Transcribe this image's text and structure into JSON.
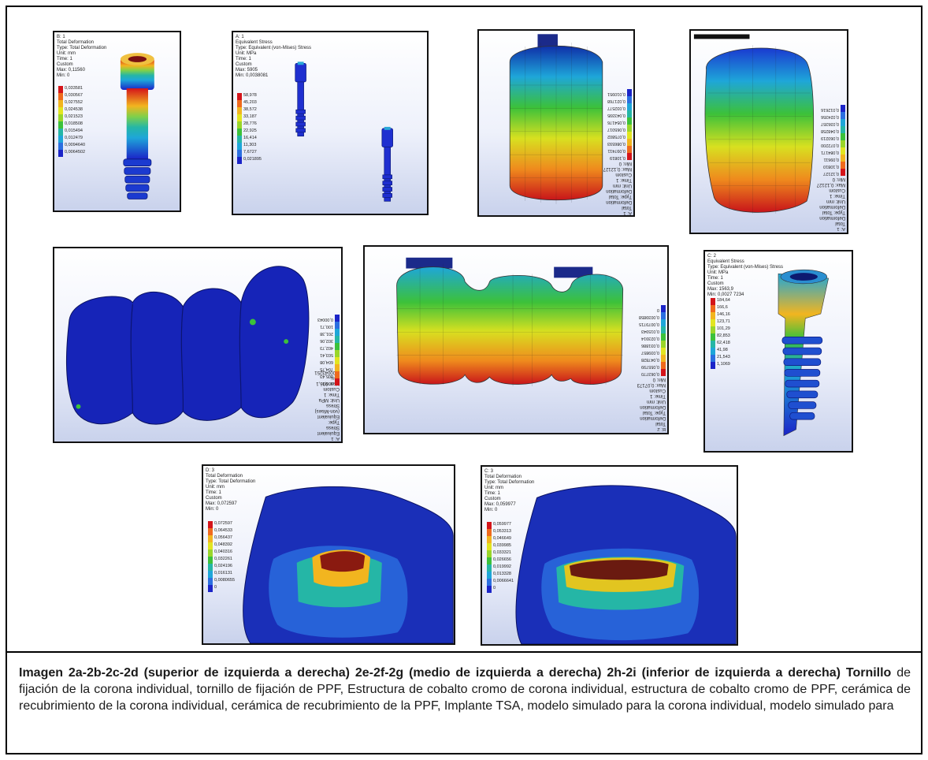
{
  "panels": [
    {
      "info": "B: 1\nTotal Deformation\nType: Total Deformation\nUnit: mm\nTime: 1\nCustom\nMax: 0,11560\nMin: 0",
      "legend": [
        "0,033581",
        "0,030567",
        "0,027552",
        "0,024538",
        "0,021523",
        "0,018508",
        "0,015494",
        "0,012479",
        "0,0094640",
        "0,0064502"
      ]
    },
    {
      "info": "A: 1\nEquivalent Stress\nType: Equivalent (von-Mises) Stress\nUnit: MPa\nTime: 1\nCustom\nMax: 5905\nMin: 0,0038081",
      "legend": [
        "58,978",
        "45,203",
        "38,572",
        "33,187",
        "28,776",
        "22,925",
        "16,414",
        "11,303",
        "7,6727",
        "0,021895"
      ]
    },
    {
      "info": "A: 1\nTotal Deformation\nType: Total Deformation\nUnit: mm\nTime: 1\nCustom\nMax: 0,12127\nMin: 0",
      "legend": [
        "0,10819",
        "0,097411",
        "0,086593",
        "0,075802",
        "0,065017",
        "0,054176",
        "0,043395",
        "0,032577",
        "0,021768",
        "0,010951"
      ]
    },
    {
      "info": "A: 1\nTotal Deformation\nType: Total Deformation\nUnit: mm\nTime: 1\nCustom\nMax: 0,12127\nMin: 0",
      "legend": [
        "0,12127",
        "0,10810",
        "0,09611",
        "0,084171",
        "0,072200",
        "0,060219",
        "0,048258",
        "0,036357",
        "0,024356",
        "0,012616"
      ]
    },
    {
      "info": "A: 1\nEquivalent Stress\nType: Equivalent (von-Mises) Stress\nUnit: MPa\nTime: 1\nCustom\nMax: 906,1\nMin: 0,00043251",
      "legend": [
        "906,1",
        "805,43",
        "704,75",
        "604,08",
        "503,41",
        "402,73",
        "302,06",
        "201,38",
        "100,71",
        "0,00043"
      ]
    },
    {
      "info": "B: 2\nTotal Deformation\nType: Total Deformation\nUnit: mm\nTime: 1\nCustom\nMax: 0,07173\nMin: 0",
      "legend": [
        "0,063770",
        "0,055799",
        "0,047828",
        "0,039857",
        "0,031886",
        "0,023914",
        "0,015943",
        "0,0079715",
        "0,0039858",
        "0"
      ]
    },
    {
      "info": "C: 2\nEquivalent Stress\nType: Equivalent (von-Mises) Stress\nUnit: MPa\nTime: 1\nCustom\nMax: 1563,9\nMin: 0,0027 7234",
      "legend": [
        "184,64",
        "166,6",
        "146,16",
        "123,71",
        "101,29",
        "82,853",
        "62,418",
        "41,98",
        "21,543",
        "1,1069"
      ]
    },
    {
      "info": "D: 3\nTotal Deformation\nType: Total Deformation\nUnit: mm\nTime: 1\nCustom\nMax: 0,072597\nMin: 0",
      "legend": [
        "0,072597",
        "0,064533",
        "0,056437",
        "0,048392",
        "0,040316",
        "0,032261",
        "0,024196",
        "0,016131",
        "0,0080655",
        "0"
      ]
    },
    {
      "info": "C: 3\nTotal Deformation\nType: Total Deformation\nUnit: mm\nTime: 1\nCustom\nMax: 0,059977\nMin: 0",
      "legend": [
        "0,059977",
        "0,053313",
        "0,046649",
        "0,039985",
        "0,033321",
        "0,026656",
        "0,019992",
        "0,013328",
        "0,0066641",
        "0"
      ]
    }
  ],
  "caption": {
    "bold_start": "Imagen 2a-2b-2c-2d (superior de izquierda a derecha) 2e-2f-2g (medio de izquierda a derecha) 2h-2i (inferior de izquierda a derecha) Tornillo",
    "rest": " de fijación de la corona individual, tornillo de fijación de PPF, Estructura de cobalto cromo de corona individual, estructura de cobalto cromo de PPF, cerámica de recubrimiento de la corona individual, cerámica de recubrimiento de la PPF, Implante TSA, modelo simulado para la corona individual, modelo simulado para"
  },
  "colors": {
    "legend": [
      "#d4141a",
      "#ef6a1d",
      "#f2b51f",
      "#e2e521",
      "#9ad62a",
      "#3cc13a",
      "#25b6a6",
      "#1ea6d9",
      "#2b6fe0",
      "#1b24c8"
    ]
  }
}
